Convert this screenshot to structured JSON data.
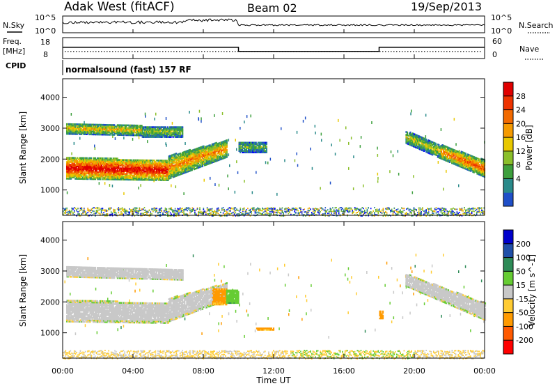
{
  "header": {
    "radar": "Adak West (fitACF)",
    "beam": "Beam 02",
    "date": "19/Sep/2013"
  },
  "nsky": {
    "label": "N.Sky",
    "ticks": [
      "10^5",
      "10^0"
    ],
    "right_label": "N.Search",
    "right_ticks": [
      "10^5",
      "10^0"
    ]
  },
  "freq": {
    "label_line1": "Freq.",
    "label_line2": "[MHz]",
    "ticks": [
      "18",
      "8"
    ],
    "right_label": "Nave",
    "right_ticks": [
      "60",
      "0"
    ]
  },
  "cpid": {
    "label": "CPID",
    "text": "normalsound (fast) 157 RF"
  },
  "power_panel": {
    "ylabel": "Slant Range [km]",
    "yticks": [
      "4000",
      "3000",
      "2000",
      "1000"
    ]
  },
  "velocity_panel": {
    "ylabel": "Slant Range [km]",
    "yticks": [
      "4000",
      "3000",
      "2000",
      "1000"
    ]
  },
  "power_scale": {
    "label": "Power [dB]",
    "ticks": [
      "28",
      "24",
      "20",
      "16",
      "12",
      "8",
      "4"
    ],
    "colors": [
      "#0000ff",
      "#1f4fc8",
      "#2a8a8a",
      "#3d9f3d",
      "#8abf2a",
      "#e8c800",
      "#f59a00",
      "#f26a00",
      "#ee3300",
      "#e00000"
    ]
  },
  "velocity_scale": {
    "label": "Velocity [m s^-1]",
    "ticks": [
      "200",
      "100",
      "50",
      "15",
      "-15",
      "-50",
      "-100",
      "-200"
    ],
    "colors": [
      "#ff0000",
      "#ff5a00",
      "#ff9a00",
      "#ffcc33",
      "#c8c8c8",
      "#66cc33",
      "#2e8b57",
      "#1f4fa8",
      "#0000cc"
    ]
  },
  "xaxis": {
    "label": "Time UT",
    "ticks": [
      "00:00",
      "04:00",
      "08:00",
      "12:00",
      "16:00",
      "20:00",
      "00:00"
    ]
  },
  "chart_data": {
    "type": "heatmap",
    "title": "Adak West (fitACF) Beam 02 19/Sep/2013",
    "xlabel": "Time UT",
    "ylabel": "Slant Range [km]",
    "xlim_hours": [
      0,
      24
    ],
    "ylim_km": [
      180,
      4600
    ],
    "frequency_mhz": [
      {
        "start": 0,
        "end": 10.0,
        "value": 13.5
      },
      {
        "start": 10.0,
        "end": 18.0,
        "value": 10.8
      },
      {
        "start": 18.0,
        "end": 24,
        "value": 13.5
      }
    ],
    "power_bands": [
      {
        "t0": 0.2,
        "t1": 6.0,
        "r0": 1350,
        "r1": 2050,
        "r0_end": 1300,
        "r1_end": 1950,
        "power_db": 30
      },
      {
        "t0": 6.0,
        "t1": 9.3,
        "r0": 1350,
        "r1": 2100,
        "r0_end": 2050,
        "r1_end": 2600,
        "power_db": 22
      },
      {
        "t0": 0.2,
        "t1": 4.5,
        "r0": 2800,
        "r1": 3150,
        "r0_end": 2750,
        "r1_end": 3100,
        "power_db": 18
      },
      {
        "t0": 4.5,
        "t1": 6.8,
        "r0": 2700,
        "r1": 3050,
        "r0_end": 2700,
        "r1_end": 3050,
        "power_db": 14
      },
      {
        "t0": 10.0,
        "t1": 11.6,
        "r0": 2200,
        "r1": 2550,
        "r0_end": 2200,
        "r1_end": 2550,
        "power_db": 12
      },
      {
        "t0": 19.5,
        "t1": 21.5,
        "r0": 2500,
        "r1": 2900,
        "r0_end": 2000,
        "r1_end": 2450,
        "power_db": 16
      },
      {
        "t0": 21.5,
        "t1": 24.0,
        "r0": 2000,
        "r1": 2450,
        "r0_end": 1400,
        "r1_end": 1950,
        "power_db": 24
      }
    ],
    "velocity_bands": [
      {
        "t0": 0.2,
        "t1": 6.0,
        "r0": 1350,
        "r1": 2050,
        "r0_end": 1300,
        "r1_end": 1950,
        "velocity": 0
      },
      {
        "t0": 6.0,
        "t1": 9.3,
        "r0": 1350,
        "r1": 2100,
        "r0_end": 2050,
        "r1_end": 2600,
        "velocity": 0
      },
      {
        "t0": 0.2,
        "t1": 6.8,
        "r0": 2800,
        "r1": 3150,
        "r0_end": 2700,
        "r1_end": 3050,
        "velocity": 0
      },
      {
        "t0": 19.5,
        "t1": 24.0,
        "r0": 2500,
        "r1": 2900,
        "r0_end": 1400,
        "r1_end": 1950,
        "velocity": 0
      },
      {
        "t0": 8.5,
        "t1": 9.3,
        "r0": 1900,
        "r1": 2400,
        "r0_end": 1900,
        "r1_end": 2400,
        "velocity": -60
      },
      {
        "t0": 9.3,
        "t1": 10.0,
        "r0": 1950,
        "r1": 2400,
        "r0_end": 1950,
        "r1_end": 2400,
        "velocity": 40
      },
      {
        "t0": 18.0,
        "t1": 18.2,
        "r0": 1450,
        "r1": 1700,
        "r0_end": 1450,
        "r1_end": 1700,
        "velocity": -60
      },
      {
        "t0": 11.0,
        "t1": 12.0,
        "r0": 1080,
        "r1": 1160,
        "r0_end": 1080,
        "r1_end": 1160,
        "velocity": -60
      }
    ],
    "near_range_clutter_km": [
      180,
      450
    ]
  }
}
